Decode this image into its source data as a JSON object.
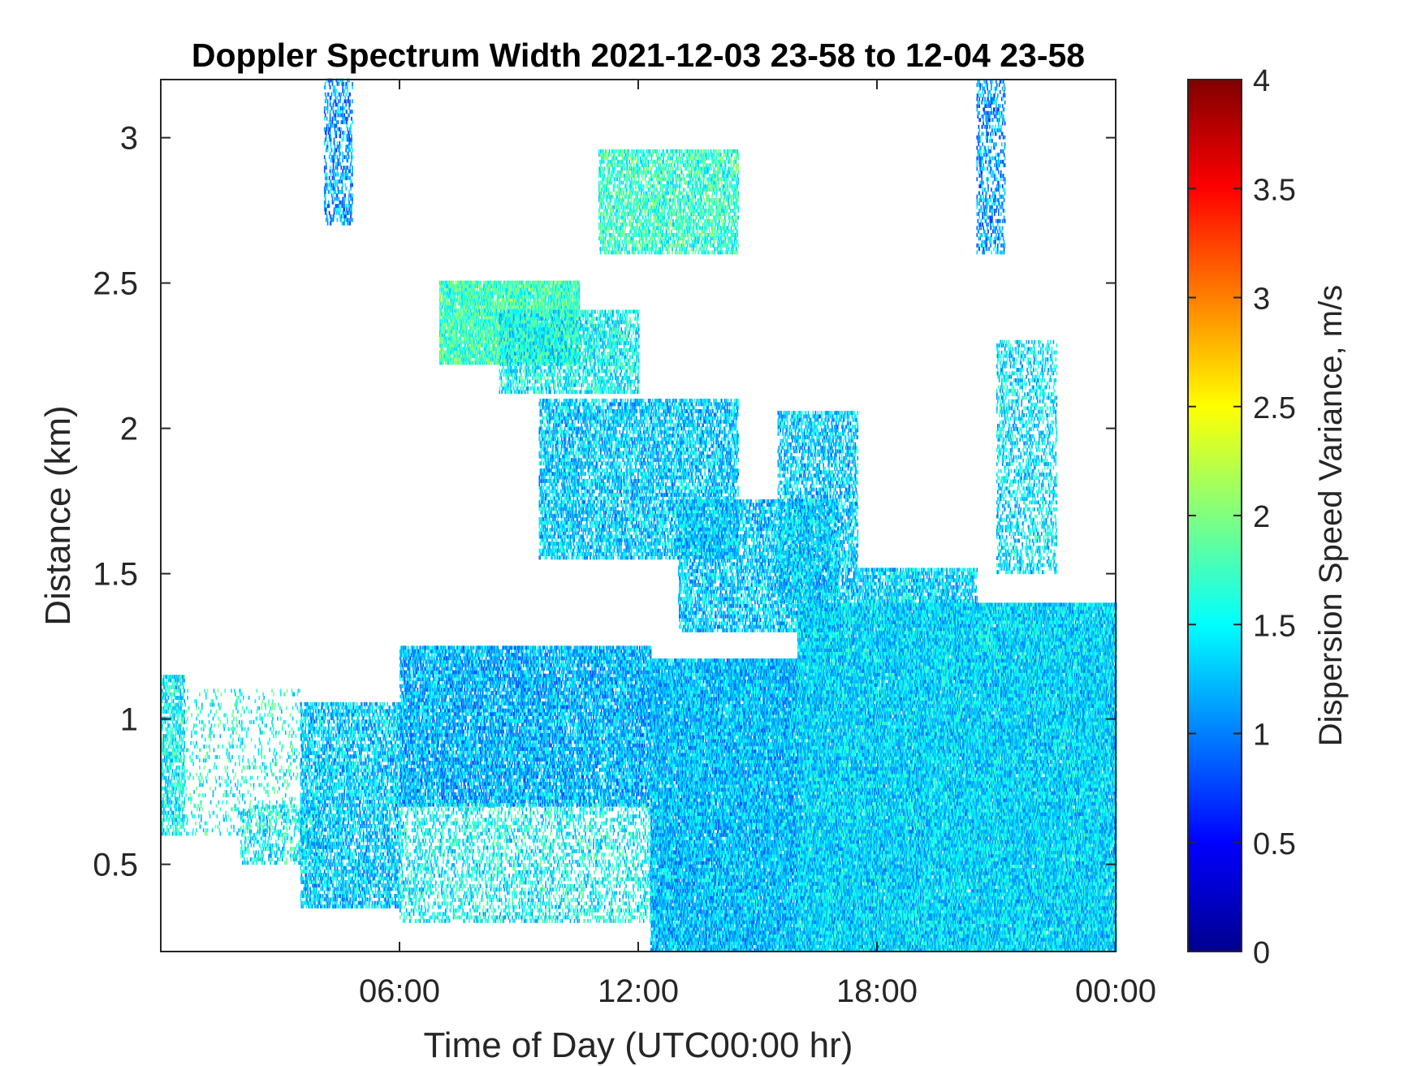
{
  "chart_data": {
    "type": "heatmap",
    "title": "Doppler Spectrum Width 2021-12-03 23-58 to 12-04 23-58",
    "xlabel": "Time of Day (UTC00:00 hr)",
    "ylabel": "Distance (km)",
    "xlim": [
      0,
      24
    ],
    "ylim": [
      0.2,
      3.2
    ],
    "x_ticks": [
      {
        "value": 6,
        "label": "06:00"
      },
      {
        "value": 12,
        "label": "12:00"
      },
      {
        "value": 18,
        "label": "18:00"
      },
      {
        "value": 24,
        "label": "00:00"
      }
    ],
    "y_ticks": [
      {
        "value": 0.5,
        "label": "0.5"
      },
      {
        "value": 1,
        "label": "1"
      },
      {
        "value": 1.5,
        "label": "1.5"
      },
      {
        "value": 2,
        "label": "2"
      },
      {
        "value": 2.5,
        "label": "2.5"
      },
      {
        "value": 3,
        "label": "3"
      }
    ],
    "colorbar": {
      "label": "Dispersion Speed Variance, m/s",
      "colormap": "jet",
      "clim": [
        0,
        4
      ],
      "ticks": [
        {
          "value": 0,
          "label": "0"
        },
        {
          "value": 0.5,
          "label": "0.5"
        },
        {
          "value": 1,
          "label": "1"
        },
        {
          "value": 1.5,
          "label": "1.5"
        },
        {
          "value": 2,
          "label": "2"
        },
        {
          "value": 2.5,
          "label": "2.5"
        },
        {
          "value": 3,
          "label": "3"
        },
        {
          "value": 3.5,
          "label": "3.5"
        },
        {
          "value": 4,
          "label": "4"
        }
      ]
    },
    "typical_value_range": [
      0.8,
      1.8
    ],
    "regions": [
      {
        "t": [
          0,
          0.6
        ],
        "z": [
          0.6,
          1.15
        ],
        "value": 1.5,
        "density": 0.5
      },
      {
        "t": [
          0.6,
          3.5
        ],
        "z": [
          0.6,
          1.1
        ],
        "value": 1.6,
        "density": 0.12
      },
      {
        "t": [
          2,
          4
        ],
        "z": [
          0.5,
          0.7
        ],
        "value": 1.5,
        "density": 0.3
      },
      {
        "t": [
          3.5,
          6
        ],
        "z": [
          0.35,
          1.05
        ],
        "value": 1.3,
        "density": 0.55
      },
      {
        "t": [
          6,
          12.3
        ],
        "z": [
          0.7,
          1.25
        ],
        "value": 1.2,
        "density": 0.7
      },
      {
        "t": [
          6,
          12.3
        ],
        "z": [
          0.3,
          0.7
        ],
        "value": 1.5,
        "density": 0.3
      },
      {
        "t": [
          12.3,
          16
        ],
        "z": [
          0.2,
          1.2
        ],
        "value": 1.25,
        "density": 0.85
      },
      {
        "t": [
          16,
          24
        ],
        "z": [
          0.2,
          1.4
        ],
        "value": 1.35,
        "density": 0.92
      },
      {
        "t": [
          17.5,
          20.5
        ],
        "z": [
          1.4,
          1.52
        ],
        "value": 1.35,
        "density": 0.6
      },
      {
        "t": [
          21,
          22.5
        ],
        "z": [
          1.5,
          2.3
        ],
        "value": 1.4,
        "density": 0.35
      },
      {
        "t": [
          7,
          10.5
        ],
        "z": [
          2.22,
          2.5
        ],
        "value": 1.75,
        "density": 0.8
      },
      {
        "t": [
          8.5,
          12
        ],
        "z": [
          2.12,
          2.4
        ],
        "value": 1.5,
        "density": 0.5
      },
      {
        "t": [
          9.5,
          14.5
        ],
        "z": [
          1.55,
          2.1
        ],
        "value": 1.3,
        "density": 0.55
      },
      {
        "t": [
          13,
          17
        ],
        "z": [
          1.3,
          1.75
        ],
        "value": 1.3,
        "density": 0.55
      },
      {
        "t": [
          15.5,
          17.5
        ],
        "z": [
          1.4,
          2.05
        ],
        "value": 1.3,
        "density": 0.5
      },
      {
        "t": [
          11,
          14.5
        ],
        "z": [
          2.6,
          2.95
        ],
        "value": 1.7,
        "density": 0.55
      },
      {
        "t": [
          4.1,
          4.8
        ],
        "z": [
          2.7,
          3.2
        ],
        "value": 1.1,
        "density": 0.35
      },
      {
        "t": [
          20.5,
          21.2
        ],
        "z": [
          2.6,
          3.2
        ],
        "value": 1.1,
        "density": 0.35
      }
    ]
  }
}
